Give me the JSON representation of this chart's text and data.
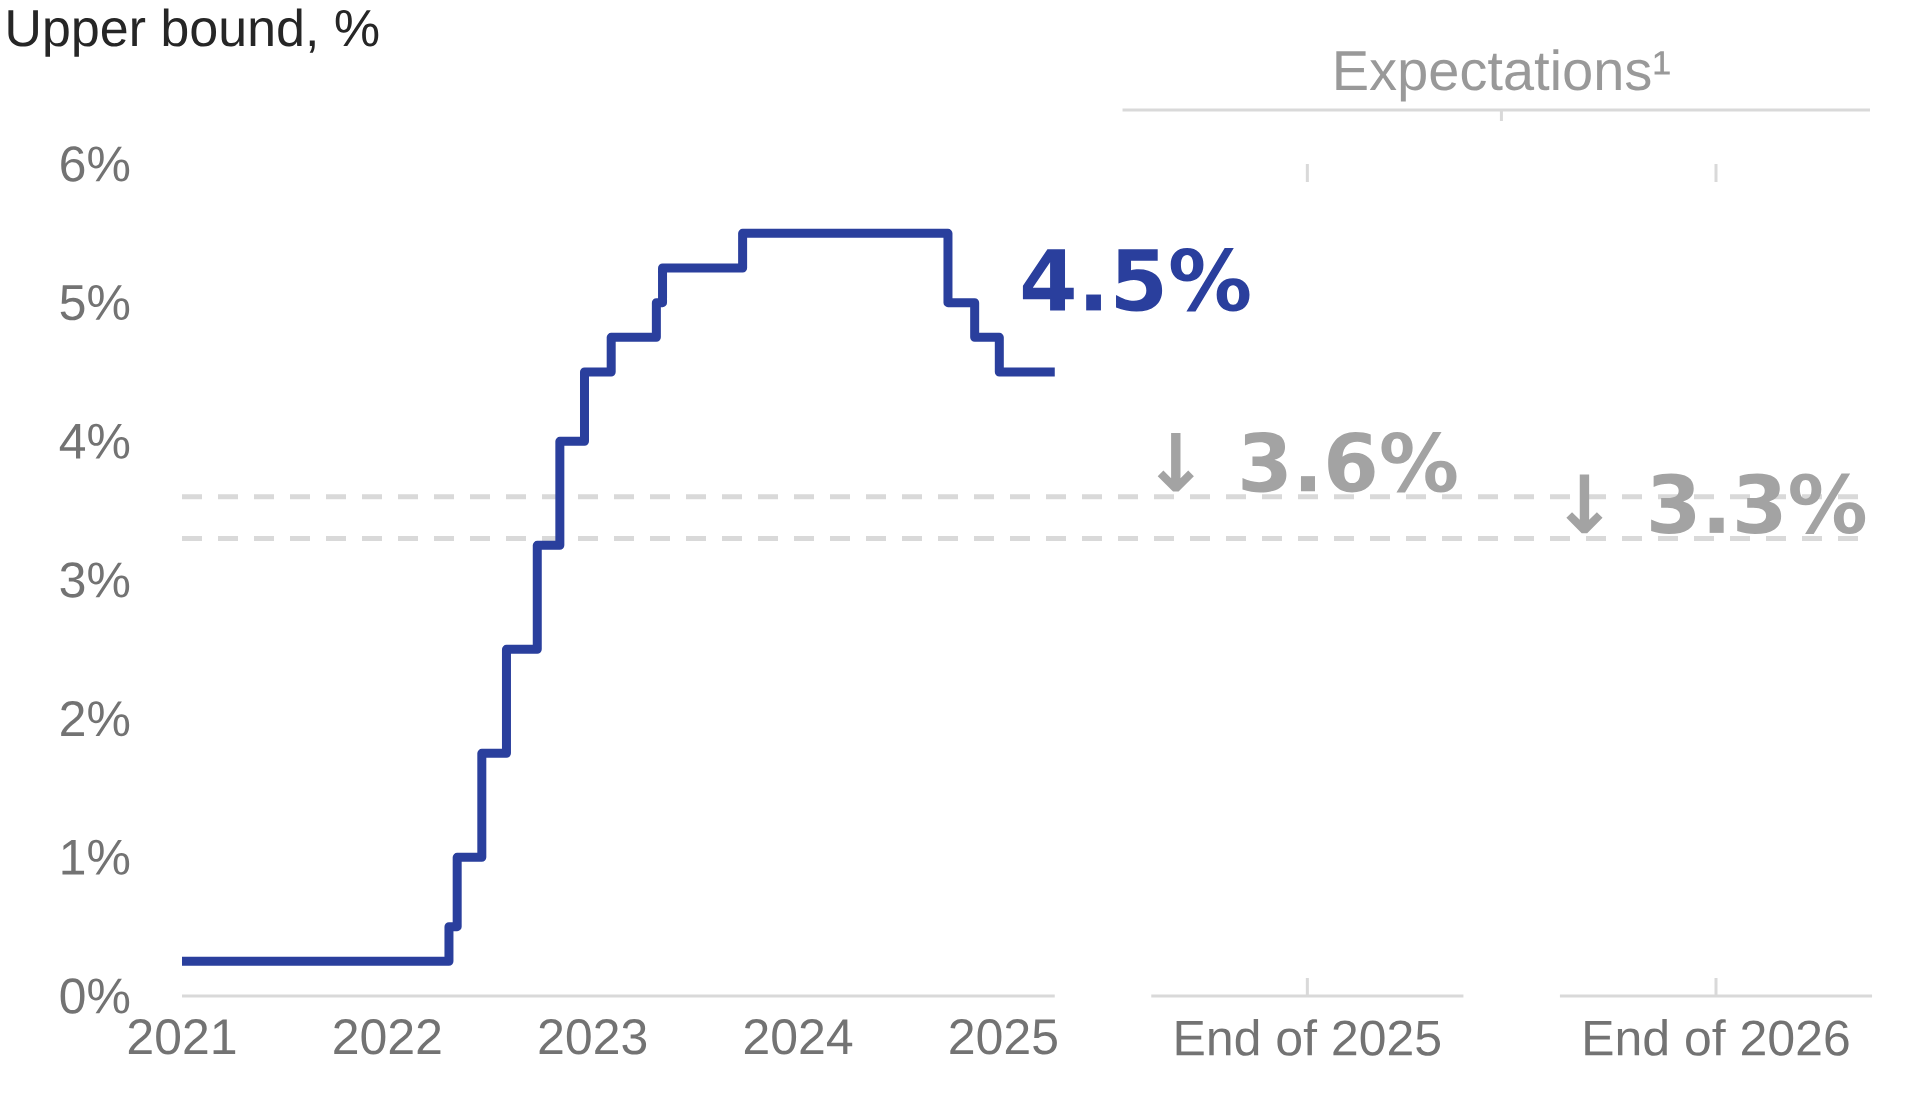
{
  "chart_data": {
    "type": "step",
    "ylabel": "Upper bound, %",
    "annotations": [
      "Expectations¹",
      {
        "text": "4.5%",
        "x": 2025.25,
        "y": 4.5
      }
    ],
    "series": [
      {
        "color": "#2a3f9d",
        "x": [
          2021.0,
          2022.3,
          2022.34,
          2022.46,
          2022.58,
          2022.73,
          2022.84,
          2022.96,
          2023.09,
          2023.31,
          2023.34,
          2023.73,
          2024.73,
          2024.86,
          2024.98,
          2025.25
        ],
        "values": [
          0.25,
          0.5,
          1.0,
          1.75,
          2.5,
          3.25,
          4.0,
          4.5,
          4.75,
          5.0,
          5.25,
          5.5,
          5.0,
          4.75,
          4.5,
          4.5
        ]
      }
    ],
    "xlim": [
      2021,
      2029.22
    ],
    "xticks": [
      2021,
      2022,
      2023,
      2024,
      2025,
      {
        "value": 2026.48,
        "label": "End of 2025"
      },
      {
        "value": 2028.47,
        "label": "End of 2026"
      }
    ],
    "ylim": [
      0,
      6
    ],
    "yticks": [
      {
        "value": 0,
        "label": "0%"
      },
      {
        "value": 1,
        "label": "1%"
      },
      {
        "value": 2,
        "label": "2%"
      },
      {
        "value": 3,
        "label": "3%"
      },
      {
        "value": 4,
        "label": "4%"
      },
      {
        "value": 5,
        "label": "5%"
      },
      {
        "value": 6,
        "label": "6%"
      }
    ],
    "ref_lines": [
      {
        "axis": "y",
        "value": 3.6,
        "label": "↓ 3.6%",
        "color": "#d9d9d9",
        "line_style": "dashed"
      },
      {
        "axis": "y",
        "value": 3.3,
        "label": "↓ 3.3%",
        "color": "#d9d9d9",
        "line_style": "dashed"
      }
    ]
  }
}
